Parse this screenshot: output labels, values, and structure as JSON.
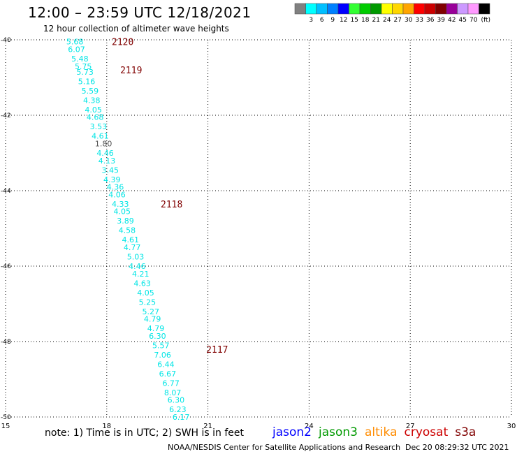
{
  "header": {
    "title": "12:00 – 23:59 UTC 12/18/2021",
    "subtitle": "12 hour collection of altimeter wave heights"
  },
  "color_scale": {
    "unit_label": "(ft)",
    "bins": [
      {
        "label": "",
        "color": "#808080"
      },
      {
        "label": "3",
        "color": "#00ffff"
      },
      {
        "label": "6",
        "color": "#00bfff"
      },
      {
        "label": "9",
        "color": "#0080ff"
      },
      {
        "label": "12",
        "color": "#0000ff"
      },
      {
        "label": "15",
        "color": "#33ff33"
      },
      {
        "label": "18",
        "color": "#00cc00"
      },
      {
        "label": "21",
        "color": "#009900"
      },
      {
        "label": "24",
        "color": "#ffff00"
      },
      {
        "label": "27",
        "color": "#ffd700"
      },
      {
        "label": "30",
        "color": "#ffa500"
      },
      {
        "label": "33",
        "color": "#ff0000"
      },
      {
        "label": "36",
        "color": "#cc0000"
      },
      {
        "label": "39",
        "color": "#800000"
      },
      {
        "label": "42",
        "color": "#990099"
      },
      {
        "label": "45",
        "color": "#cc99ff"
      },
      {
        "label": "70",
        "color": "#ff99ff"
      },
      {
        "label": "",
        "color": "#000000"
      }
    ]
  },
  "footer": {
    "note": "note:  1) Time is in UTC;  2) SWH is in feet",
    "credit": "NOAA/NESDIS Center for Satellite Applications and Research",
    "timestamp": "Dec 20 08:29:32 UTC 2021"
  },
  "satellites": [
    {
      "name": "jason2",
      "color": "#0000ff"
    },
    {
      "name": "jason3",
      "color": "#009900"
    },
    {
      "name": "altika",
      "color": "#ff8c00"
    },
    {
      "name": "cryosat",
      "color": "#cc0000"
    },
    {
      "name": "s3a",
      "color": "#800000"
    }
  ],
  "chart_data": {
    "type": "scatter",
    "title": "12:00 – 23:59 UTC 12/18/2021",
    "xlim": [
      15,
      30
    ],
    "ylim": [
      -50,
      -40
    ],
    "x_ticks": [
      "15",
      "18",
      "21",
      "24",
      "27",
      "30"
    ],
    "y_ticks": [
      "-40",
      "-42",
      "-44",
      "-46",
      "-48",
      "-50"
    ],
    "grid": true,
    "unit": "ft",
    "value_color": "#00e5e5",
    "time_label_color": "#800000",
    "time_labels": [
      {
        "text": "2120",
        "lon": 18.15,
        "lat": -40.05
      },
      {
        "text": "2119",
        "lon": 18.4,
        "lat": -40.8
      },
      {
        "text": "2118",
        "lon": 19.6,
        "lat": -44.35
      },
      {
        "text": "2117",
        "lon": 20.95,
        "lat": -48.2
      }
    ],
    "points": [
      {
        "lon": 16.8,
        "lat": -40.05,
        "swh": "5.68",
        "color": "#00e5e5"
      },
      {
        "lon": 16.85,
        "lat": -40.25,
        "swh": "6.07",
        "color": "#00e5e5"
      },
      {
        "lon": 16.95,
        "lat": -40.5,
        "swh": "5.48",
        "color": "#00e5e5"
      },
      {
        "lon": 17.05,
        "lat": -40.7,
        "swh": "5.75",
        "color": "#00e5e5"
      },
      {
        "lon": 17.1,
        "lat": -40.85,
        "swh": "5.73",
        "color": "#00e5e5"
      },
      {
        "lon": 17.15,
        "lat": -41.1,
        "swh": "5.16",
        "color": "#00e5e5"
      },
      {
        "lon": 17.25,
        "lat": -41.35,
        "swh": "5.59",
        "color": "#00e5e5"
      },
      {
        "lon": 17.3,
        "lat": -41.6,
        "swh": "4.38",
        "color": "#00e5e5"
      },
      {
        "lon": 17.35,
        "lat": -41.85,
        "swh": "4.05",
        "color": "#00e5e5"
      },
      {
        "lon": 17.4,
        "lat": -42.05,
        "swh": "4.68",
        "color": "#00e5e5"
      },
      {
        "lon": 17.5,
        "lat": -42.3,
        "swh": "3.53",
        "color": "#00e5e5"
      },
      {
        "lon": 17.55,
        "lat": -42.55,
        "swh": "4.61",
        "color": "#00e5e5"
      },
      {
        "lon": 17.65,
        "lat": -42.75,
        "swh": "1.80",
        "color": "#555555"
      },
      {
        "lon": 17.7,
        "lat": -43.0,
        "swh": "4.46",
        "color": "#00e5e5"
      },
      {
        "lon": 17.75,
        "lat": -43.2,
        "swh": "4.13",
        "color": "#00e5e5"
      },
      {
        "lon": 17.85,
        "lat": -43.45,
        "swh": "3.45",
        "color": "#00e5e5"
      },
      {
        "lon": 17.9,
        "lat": -43.7,
        "swh": "4.39",
        "color": "#00e5e5"
      },
      {
        "lon": 18.0,
        "lat": -43.9,
        "swh": "4.36",
        "color": "#00e5e5"
      },
      {
        "lon": 18.05,
        "lat": -44.1,
        "swh": "4.06",
        "color": "#00e5e5"
      },
      {
        "lon": 18.15,
        "lat": -44.35,
        "swh": "4.33",
        "color": "#00e5e5"
      },
      {
        "lon": 18.2,
        "lat": -44.55,
        "swh": "4.05",
        "color": "#00e5e5"
      },
      {
        "lon": 18.3,
        "lat": -44.8,
        "swh": "3.89",
        "color": "#00e5e5"
      },
      {
        "lon": 18.35,
        "lat": -45.05,
        "swh": "4.58",
        "color": "#00e5e5"
      },
      {
        "lon": 18.45,
        "lat": -45.3,
        "swh": "4.61",
        "color": "#00e5e5"
      },
      {
        "lon": 18.5,
        "lat": -45.5,
        "swh": "4.77",
        "color": "#00e5e5"
      },
      {
        "lon": 18.6,
        "lat": -45.75,
        "swh": "5.03",
        "color": "#00e5e5"
      },
      {
        "lon": 18.65,
        "lat": -46.0,
        "swh": "4.46",
        "color": "#00e5e5"
      },
      {
        "lon": 18.75,
        "lat": -46.2,
        "swh": "4.21",
        "color": "#00e5e5"
      },
      {
        "lon": 18.8,
        "lat": -46.45,
        "swh": "4.63",
        "color": "#00e5e5"
      },
      {
        "lon": 18.9,
        "lat": -46.7,
        "swh": "4.05",
        "color": "#00e5e5"
      },
      {
        "lon": 18.95,
        "lat": -46.95,
        "swh": "5.25",
        "color": "#00e5e5"
      },
      {
        "lon": 19.05,
        "lat": -47.2,
        "swh": "5.27",
        "color": "#00e5e5"
      },
      {
        "lon": 19.1,
        "lat": -47.4,
        "swh": "4.79",
        "color": "#00e5e5"
      },
      {
        "lon": 19.2,
        "lat": -47.65,
        "swh": "4.79",
        "color": "#00e5e5"
      },
      {
        "lon": 19.25,
        "lat": -47.85,
        "swh": "6.30",
        "color": "#00e5e5"
      },
      {
        "lon": 19.35,
        "lat": -48.1,
        "swh": "5.57",
        "color": "#00e5e5"
      },
      {
        "lon": 19.4,
        "lat": -48.35,
        "swh": "7.06",
        "color": "#00e5e5"
      },
      {
        "lon": 19.5,
        "lat": -48.6,
        "swh": "6.44",
        "color": "#00e5e5"
      },
      {
        "lon": 19.55,
        "lat": -48.85,
        "swh": "6.67",
        "color": "#00e5e5"
      },
      {
        "lon": 19.65,
        "lat": -49.1,
        "swh": "6.77",
        "color": "#00e5e5"
      },
      {
        "lon": 19.7,
        "lat": -49.35,
        "swh": "8.07",
        "color": "#00e5e5"
      },
      {
        "lon": 19.8,
        "lat": -49.55,
        "swh": "6.30",
        "color": "#00e5e5"
      },
      {
        "lon": 19.85,
        "lat": -49.8,
        "swh": "6.23",
        "color": "#00e5e5"
      },
      {
        "lon": 19.95,
        "lat": -50.0,
        "swh": "6.17",
        "color": "#00e5e5"
      }
    ]
  }
}
